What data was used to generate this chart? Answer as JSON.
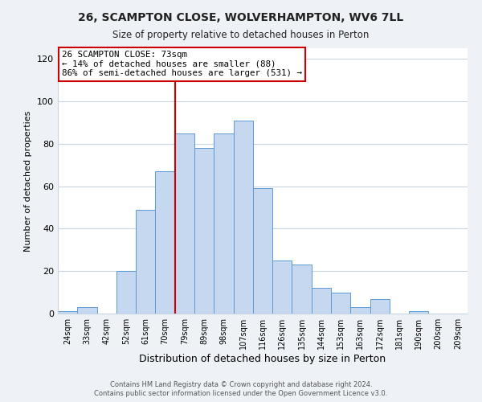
{
  "title": "26, SCAMPTON CLOSE, WOLVERHAMPTON, WV6 7LL",
  "subtitle": "Size of property relative to detached houses in Perton",
  "xlabel": "Distribution of detached houses by size in Perton",
  "ylabel": "Number of detached properties",
  "categories": [
    "24sqm",
    "33sqm",
    "42sqm",
    "52sqm",
    "61sqm",
    "70sqm",
    "79sqm",
    "89sqm",
    "98sqm",
    "107sqm",
    "116sqm",
    "126sqm",
    "135sqm",
    "144sqm",
    "153sqm",
    "163sqm",
    "172sqm",
    "181sqm",
    "190sqm",
    "200sqm",
    "209sqm"
  ],
  "values": [
    1,
    3,
    0,
    20,
    49,
    67,
    85,
    78,
    85,
    91,
    59,
    25,
    23,
    12,
    10,
    3,
    7,
    0,
    1,
    0,
    0
  ],
  "bar_color": "#c5d8f0",
  "bar_edge_color": "#5b9bd5",
  "bar_width": 1.0,
  "vline_x": 6,
  "vline_color": "#cc0000",
  "annotation_box_text": "26 SCAMPTON CLOSE: 73sqm\n← 14% of detached houses are smaller (88)\n86% of semi-detached houses are larger (531) →",
  "annotation_box_color": "#cc0000",
  "ylim": [
    0,
    125
  ],
  "yticks": [
    0,
    20,
    40,
    60,
    80,
    100,
    120
  ],
  "footer1": "Contains HM Land Registry data © Crown copyright and database right 2024.",
  "footer2": "Contains public sector information licensed under the Open Government Licence v3.0.",
  "bg_color": "#eef2f7",
  "plot_bg_color": "#ffffff",
  "grid_color": "#c8d4e0"
}
